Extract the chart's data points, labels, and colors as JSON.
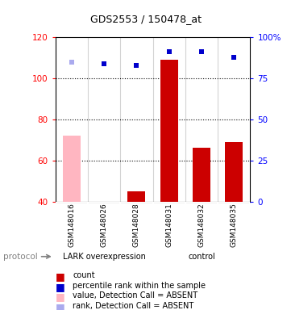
{
  "title": "GDS2553 / 150478_at",
  "samples": [
    "GSM148016",
    "GSM148026",
    "GSM148028",
    "GSM148031",
    "GSM148032",
    "GSM148035"
  ],
  "bar_values": [
    null,
    40,
    45,
    109,
    66,
    69
  ],
  "bar_absent_values": [
    72,
    null,
    null,
    null,
    null,
    null
  ],
  "bar_color_present": "#cc0000",
  "bar_color_absent": "#ffb6c1",
  "scatter_present": [
    null,
    84,
    83,
    91,
    91,
    88
  ],
  "scatter_absent": [
    85,
    null,
    null,
    null,
    null,
    null
  ],
  "scatter_color_present": "#0000cc",
  "scatter_color_absent": "#aaaaee",
  "ylim_left": [
    40,
    120
  ],
  "ylim_right": [
    0,
    100
  ],
  "yticks_left": [
    40,
    60,
    80,
    100,
    120
  ],
  "yticks_right": [
    0,
    25,
    50,
    75,
    100
  ],
  "ytick_labels_right": [
    "0",
    "25",
    "50",
    "75",
    "100%"
  ],
  "background_color": "#ffffff",
  "sample_box_color": "#d3d3d3",
  "lark_group_color": "#90EE90",
  "lark_label": "LARK overexpression",
  "control_label": "control",
  "protocol_label": "protocol",
  "legend_items": [
    {
      "color": "#cc0000",
      "label": "count"
    },
    {
      "color": "#0000cc",
      "label": "percentile rank within the sample"
    },
    {
      "color": "#ffb6c1",
      "label": "value, Detection Call = ABSENT"
    },
    {
      "color": "#aaaaee",
      "label": "rank, Detection Call = ABSENT"
    }
  ]
}
